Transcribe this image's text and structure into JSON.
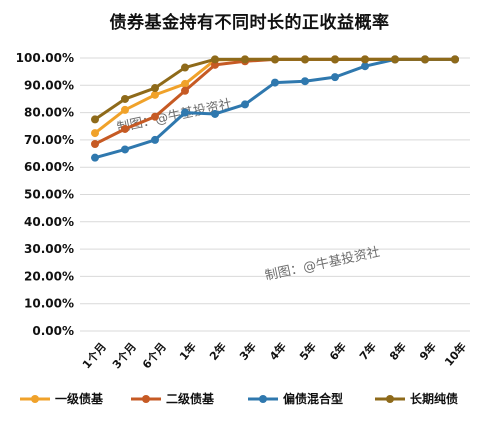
{
  "chart_data": {
    "type": "line",
    "title": "债券基金持有不同时长的正收益概率",
    "categories": [
      "1个月",
      "3个月",
      "6个月",
      "1年",
      "2年",
      "3年",
      "4年",
      "5年",
      "6年",
      "7年",
      "8年",
      "9年",
      "10年"
    ],
    "ylim": [
      0,
      100
    ],
    "yticks": [
      "0.00%",
      "10.00%",
      "20.00%",
      "30.00%",
      "40.00%",
      "50.00%",
      "60.00%",
      "70.00%",
      "80.00%",
      "90.00%",
      "100.00%"
    ],
    "grid": true,
    "legend_position": "bottom",
    "series": [
      {
        "name": "一级债基",
        "color": "#F0A22A",
        "values": [
          72.5,
          81,
          86.5,
          90.5,
          99.3,
          99.5,
          99.5,
          99.5,
          99.5,
          99.5,
          99.5,
          99.5,
          99.5
        ]
      },
      {
        "name": "二级债基",
        "color": "#C65A24",
        "values": [
          68.5,
          74,
          78.5,
          88,
          97.5,
          98.8,
          99.5,
          99.5,
          99.5,
          99.5,
          99.5,
          99.5,
          99.5
        ]
      },
      {
        "name": "偏债混合型",
        "color": "#2F78AE",
        "values": [
          63.5,
          66.5,
          70,
          80,
          79.5,
          83,
          91,
          91.5,
          93,
          97,
          99.5,
          99.5,
          99.5
        ]
      },
      {
        "name": "长期纯债",
        "color": "#8E6A1A",
        "values": [
          77.5,
          85,
          89,
          96.5,
          99.5,
          99.5,
          99.5,
          99.5,
          99.5,
          99.5,
          99.5,
          99.5,
          99.5
        ]
      }
    ],
    "watermarks": [
      "制图：@牛基投资社",
      "制图：@牛基投资社"
    ]
  }
}
